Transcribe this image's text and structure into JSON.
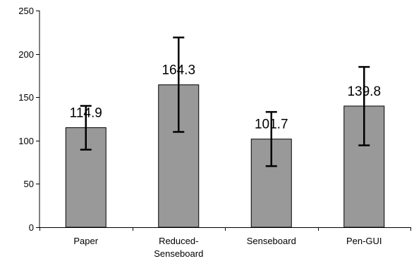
{
  "chart_data": {
    "type": "bar",
    "categories": [
      [
        "Paper"
      ],
      [
        "Reduced-",
        "Senseboard"
      ],
      [
        "Senseboard"
      ],
      [
        "Pen-GUI"
      ]
    ],
    "values": [
      114.9,
      164.3,
      101.7,
      139.8
    ],
    "data_labels": [
      "114.9",
      "164.3",
      "101.7",
      "139.8"
    ],
    "error_bars": [
      {
        "low": 89.5,
        "high": 140
      },
      {
        "low": 110,
        "high": 219
      },
      {
        "low": 70.5,
        "high": 133
      },
      {
        "low": 94.5,
        "high": 185
      }
    ],
    "ylim": [
      0,
      250
    ],
    "yticks": [
      0,
      50,
      100,
      150,
      200,
      250
    ],
    "ytick_labels": [
      "0",
      "50",
      "100",
      "150",
      "200",
      "250"
    ],
    "title": "",
    "xlabel": "",
    "ylabel": "",
    "grid": false,
    "legend": "none",
    "colors": {
      "bar_fill": "#999999",
      "bar_stroke": "#000000",
      "axis": "#000000",
      "error_bar": "#000000"
    }
  }
}
